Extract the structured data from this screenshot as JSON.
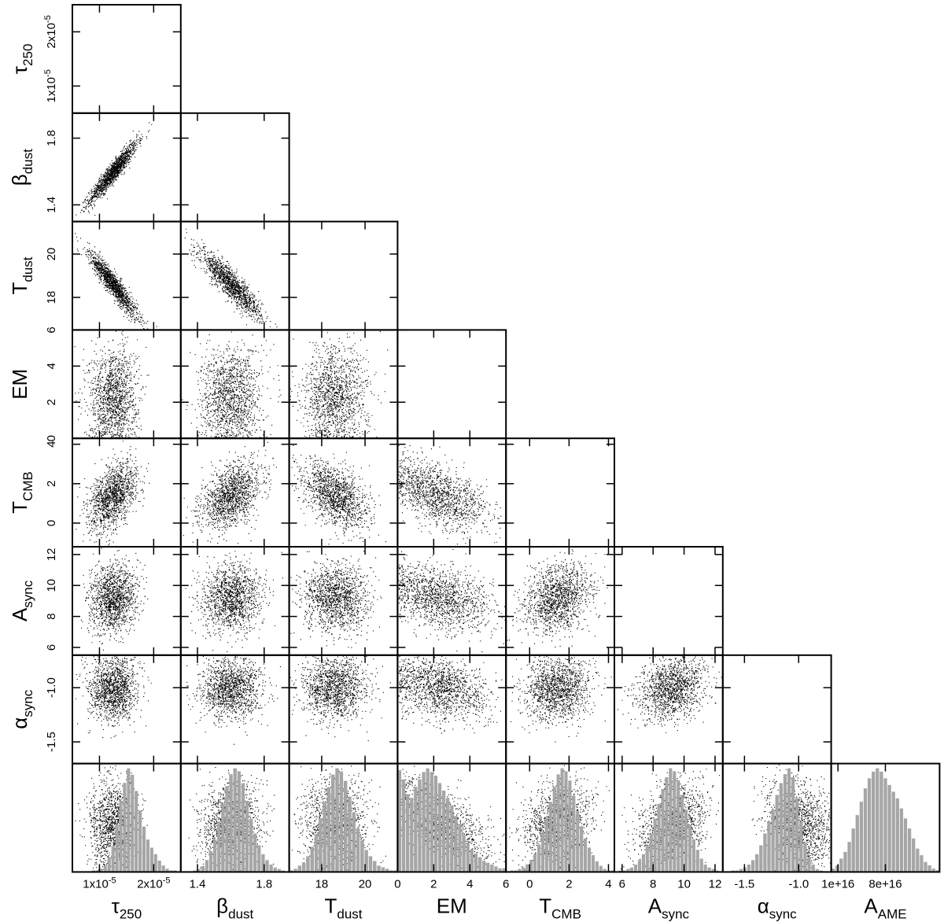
{
  "chart_data": {
    "type": "scatter",
    "layout": "corner-plot",
    "grid": false,
    "legend": "none",
    "hist_color": "#a6a6a6",
    "point_color": "#000000",
    "params": [
      {
        "key": "tau250",
        "label_main": "τ",
        "label_sub": "250",
        "range": [
          0.5,
          2.5
        ],
        "ticks": [
          {
            "v": 1.0,
            "label": "1x10",
            "exp": "-5"
          },
          {
            "v": 2.0,
            "label": "2x10",
            "exp": "-5"
          }
        ],
        "mean": 1.25,
        "sd": 0.22,
        "hist": [
          0,
          0,
          0,
          0,
          0,
          1,
          1,
          2,
          4,
          9,
          16,
          29,
          44,
          55,
          64,
          60,
          50,
          38,
          28,
          20,
          15,
          11,
          7,
          4,
          2,
          1,
          1,
          0
        ]
      },
      {
        "key": "beta",
        "label_main": "β",
        "label_sub": "dust",
        "range": [
          1.3,
          1.95
        ],
        "ticks": [
          {
            "v": 1.4,
            "label": "1.4"
          },
          {
            "v": 1.8,
            "label": "1.8"
          }
        ],
        "mean": 1.6,
        "sd": 0.09,
        "hist": [
          0,
          0,
          0,
          1,
          2,
          4,
          8,
          14,
          22,
          34,
          46,
          58,
          66,
          70,
          68,
          60,
          48,
          36,
          26,
          18,
          12,
          8,
          5,
          3,
          2,
          1,
          0
        ]
      },
      {
        "key": "Tdust",
        "label_main": "T",
        "label_sub": "dust",
        "range": [
          16.5,
          21.5
        ],
        "ticks": [
          {
            "v": 18,
            "label": "18"
          },
          {
            "v": 20,
            "label": "20"
          }
        ],
        "mean": 18.6,
        "sd": 0.75,
        "hist": [
          1,
          2,
          4,
          6,
          10,
          16,
          24,
          34,
          44,
          54,
          62,
          66,
          64,
          58,
          48,
          38,
          28,
          20,
          14,
          10,
          7,
          4,
          3,
          2,
          1,
          1
        ]
      },
      {
        "key": "EM",
        "label_main": "EM",
        "label_sub": "",
        "range": [
          0,
          6
        ],
        "ticks": [
          {
            "v": 0,
            "label": "0"
          },
          {
            "v": 2,
            "label": "2"
          },
          {
            "v": 4,
            "label": "4"
          },
          {
            "v": 6,
            "label": "6"
          }
        ],
        "mean": 2.3,
        "sd": 1.4,
        "hist": [
          55,
          50,
          42,
          40,
          46,
          50,
          54,
          56,
          54,
          52,
          48,
          44,
          40,
          36,
          30,
          26,
          20,
          16,
          12,
          10,
          8,
          6,
          5,
          4,
          3,
          2,
          2
        ]
      },
      {
        "key": "TCMB",
        "label_main": "T",
        "label_sub": "CMB",
        "range": [
          -1.2,
          4.3
        ],
        "ticks": [
          {
            "v": 0,
            "label": "0"
          },
          {
            "v": 2,
            "label": "2"
          },
          {
            "v": 4,
            "label": "4"
          }
        ],
        "mean": 1.4,
        "sd": 0.85,
        "hist": [
          0,
          1,
          1,
          2,
          3,
          5,
          8,
          12,
          18,
          26,
          36,
          46,
          56,
          64,
          68,
          66,
          60,
          50,
          40,
          30,
          22,
          16,
          11,
          7,
          4,
          2,
          1,
          1
        ]
      },
      {
        "key": "Async",
        "label_main": "A",
        "label_sub": "sync",
        "range": [
          5.5,
          12.5
        ],
        "ticks": [
          {
            "v": 6,
            "label": "6"
          },
          {
            "v": 8,
            "label": "8"
          },
          {
            "v": 10,
            "label": "10"
          },
          {
            "v": 12,
            "label": "12"
          }
        ],
        "mean": 9.2,
        "sd": 1.1,
        "hist": [
          0,
          1,
          1,
          2,
          3,
          5,
          8,
          12,
          18,
          26,
          36,
          46,
          56,
          64,
          70,
          68,
          62,
          52,
          42,
          32,
          22,
          15,
          9,
          5,
          3,
          2,
          1,
          0
        ]
      },
      {
        "key": "alpha",
        "label_main": "α",
        "label_sub": "sync",
        "range": [
          -1.7,
          -0.7
        ],
        "ticks": [
          {
            "v": -1.5,
            "label": "-1.5"
          },
          {
            "v": -1.0,
            "label": "-1.0"
          }
        ],
        "mean": -1.0,
        "sd": 0.15,
        "hist": [
          0,
          0,
          1,
          1,
          2,
          3,
          5,
          8,
          12,
          18,
          26,
          34,
          42,
          52,
          60,
          66,
          70,
          64,
          50,
          34,
          20,
          10,
          5,
          2,
          1,
          0,
          0
        ]
      },
      {
        "key": "AAME",
        "label_main": "A",
        "label_sub": "AME",
        "range": [
          0,
          1.6
        ],
        "ticks": [
          {
            "v": 0.1,
            "label": "1e+16"
          },
          {
            "v": 0.8,
            "label": "8e+16"
          }
        ],
        "mean": 0.7,
        "sd": 0.32,
        "hist": [
          2,
          4,
          8,
          12,
          18,
          26,
          34,
          42,
          50,
          56,
          60,
          62,
          60,
          56,
          52,
          48,
          44,
          38,
          32,
          26,
          20,
          14,
          10,
          6,
          4,
          2,
          1
        ]
      }
    ],
    "correlations": [
      [
        0
      ],
      [
        0.94
      ],
      [
        -0.93,
        -0.9
      ],
      [
        0.05,
        0.05,
        0.05
      ],
      [
        0.45,
        0.45,
        -0.45,
        -0.5
      ],
      [
        0.1,
        0.1,
        -0.05,
        -0.35,
        0.25
      ],
      [
        0.05,
        0.05,
        0.0,
        -0.3,
        0.1,
        0.2
      ],
      [
        0.0,
        0.05,
        0.0,
        -0.55,
        0.2,
        0.3,
        -0.15
      ]
    ]
  }
}
